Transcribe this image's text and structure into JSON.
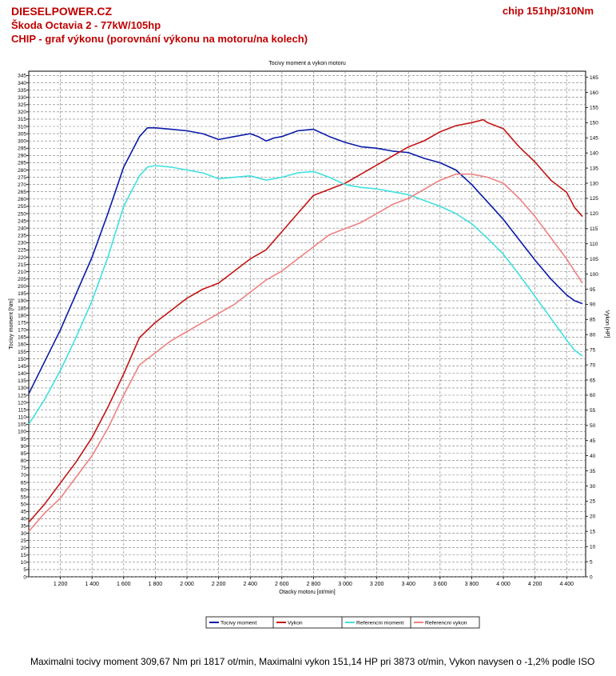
{
  "header": {
    "site": "DIESELPOWER.CZ",
    "model": "Škoda Octavia 2 - 77kW/105hp",
    "subtitle": "CHIP - graf výkonu (porovnání výkonu na motoru/na kolech)",
    "chip": "chip 151hp/310Nm"
  },
  "summary": "Maximalni tocivy moment 309,67 Nm pri 1817 ot/min,  Maximalni vykon 151,14 HP pri 3873 ot/min,  Vykon navysen o -1,2% podle ISO",
  "chart_data": {
    "type": "line",
    "title": "Tocivy moment a vykon motoru",
    "xlabel": "Otacky motoru [ot/min]",
    "ylabel_left": "Tocivy moment [Nm]",
    "ylabel_right": "Vykon [HP]",
    "xlim": [
      1000,
      4520
    ],
    "ylim_left": [
      0,
      348
    ],
    "ylim_right": [
      0,
      167
    ],
    "x_ticks": [
      1200,
      1400,
      1600,
      1800,
      2000,
      2200,
      2400,
      2600,
      2800,
      3000,
      3200,
      3400,
      3600,
      3800,
      4000,
      4200,
      4400
    ],
    "x_tick_labels": [
      "1 200",
      "1 400",
      "1 600",
      "1 800",
      "2 000",
      "2 200",
      "2 400",
      "2 600",
      "2 800",
      "3 000",
      "3 200",
      "3 400",
      "3 600",
      "3 800",
      "4 000",
      "4 200",
      "4 400"
    ],
    "y_left_step": 5,
    "y_right_step": 5,
    "grid": true,
    "legend_position": "bottom-center",
    "series": [
      {
        "name": "Tocivy moment",
        "axis": "left",
        "color": "#0a1aa8",
        "x": [
          1000,
          1100,
          1200,
          1300,
          1400,
          1500,
          1600,
          1700,
          1750,
          1800,
          1900,
          2000,
          2100,
          2200,
          2300,
          2400,
          2450,
          2500,
          2550,
          2600,
          2700,
          2800,
          2900,
          3000,
          3100,
          3200,
          3300,
          3400,
          3500,
          3600,
          3700,
          3800,
          3900,
          4000,
          4100,
          4200,
          4300,
          4400,
          4450,
          4500
        ],
        "values": [
          126,
          148,
          170,
          195,
          220,
          250,
          282,
          303,
          309,
          309,
          308,
          307,
          305,
          301,
          303,
          305,
          303,
          300,
          302,
          303,
          307,
          308,
          303,
          299,
          296,
          295,
          293,
          292,
          288,
          285,
          280,
          270,
          258,
          246,
          232,
          218,
          205,
          194,
          190,
          188
        ]
      },
      {
        "name": "Vykon",
        "axis": "right",
        "color": "#c41414",
        "x": [
          1000,
          1100,
          1200,
          1300,
          1400,
          1500,
          1600,
          1700,
          1800,
          1900,
          2000,
          2100,
          2200,
          2300,
          2400,
          2500,
          2600,
          2700,
          2800,
          2900,
          3000,
          3100,
          3200,
          3300,
          3400,
          3500,
          3600,
          3700,
          3800,
          3873,
          3900,
          4000,
          4100,
          4200,
          4300,
          4400,
          4450,
          4500
        ],
        "values": [
          18,
          24,
          31,
          38,
          46,
          56,
          67,
          79,
          84,
          88,
          92,
          95,
          97,
          101,
          105,
          108,
          114,
          120,
          126,
          128,
          130,
          133,
          136,
          139,
          142,
          144,
          147,
          149,
          150,
          151,
          150,
          148,
          142,
          137,
          131,
          127,
          122,
          119
        ]
      },
      {
        "name": "Referencni moment",
        "axis": "left",
        "color": "#40e0e0",
        "x": [
          1000,
          1100,
          1200,
          1300,
          1400,
          1500,
          1600,
          1700,
          1750,
          1800,
          1900,
          2000,
          2100,
          2200,
          2300,
          2400,
          2500,
          2600,
          2700,
          2800,
          2900,
          3000,
          3100,
          3200,
          3300,
          3400,
          3500,
          3600,
          3700,
          3800,
          3900,
          4000,
          4100,
          4200,
          4300,
          4400,
          4450,
          4500
        ],
        "values": [
          105,
          122,
          142,
          165,
          190,
          220,
          255,
          276,
          282,
          283,
          282,
          280,
          278,
          274,
          275,
          276,
          273,
          275,
          278,
          279,
          275,
          270,
          268,
          267,
          265,
          263,
          259,
          255,
          250,
          243,
          233,
          222,
          208,
          193,
          178,
          163,
          156,
          152
        ]
      },
      {
        "name": "Referencni vykon",
        "axis": "right",
        "color": "#f08080",
        "x": [
          1000,
          1100,
          1200,
          1300,
          1400,
          1500,
          1600,
          1700,
          1800,
          1900,
          2000,
          2100,
          2200,
          2300,
          2400,
          2500,
          2600,
          2700,
          2800,
          2900,
          3000,
          3100,
          3200,
          3300,
          3400,
          3500,
          3600,
          3700,
          3800,
          3900,
          4000,
          4100,
          4200,
          4300,
          4400,
          4500
        ],
        "values": [
          15,
          21,
          26,
          33,
          40,
          49,
          60,
          70,
          74,
          78,
          81,
          84,
          87,
          90,
          94,
          98,
          101,
          105,
          109,
          113,
          115,
          117,
          120,
          123,
          125,
          128,
          131,
          133,
          133,
          132,
          130,
          125,
          119,
          112,
          105,
          97
        ]
      }
    ]
  }
}
